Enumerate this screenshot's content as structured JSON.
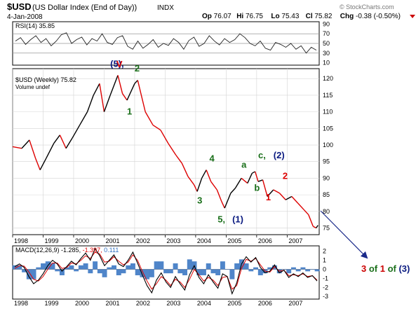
{
  "header": {
    "symbol": "$USD",
    "name": "(US Dollar Index (End of Day))",
    "exchange": "INDX",
    "watermark": "© StockCharts.com",
    "date": "4-Jan-2008",
    "quote": [
      {
        "label": "Op",
        "value": "76.07"
      },
      {
        "label": "Hi",
        "value": "76.75"
      },
      {
        "label": "Lo",
        "value": "75.43"
      },
      {
        "label": "Cl",
        "value": "75.82"
      },
      {
        "label": "Chg",
        "value": "-0.38 (-0.50%)"
      }
    ],
    "down_marker_color": "#cc0000"
  },
  "rsi_panel": {
    "label": "RSI(14) 35.85",
    "ticks": [
      70,
      50,
      30,
      10
    ],
    "extra_ticks": [
      90
    ],
    "overbought": 70,
    "oversold": 30,
    "values": [
      55,
      62,
      48,
      58,
      66,
      52,
      60,
      45,
      55,
      68,
      72,
      50,
      58,
      63,
      47,
      60,
      55,
      70,
      52,
      48,
      62,
      66,
      44,
      38,
      55,
      40,
      48,
      58,
      42,
      50,
      46,
      60,
      52,
      38,
      56,
      63,
      44,
      50,
      66,
      55,
      47,
      60,
      52,
      58,
      70,
      62,
      50,
      45,
      55,
      40,
      36,
      52,
      48,
      42,
      50,
      38,
      45,
      30,
      42,
      36
    ]
  },
  "price_panel": {
    "legend_price": "$USD (Weekly) 75.82",
    "legend_volume": "Volume undef",
    "ticks": [
      120,
      115,
      110,
      105,
      100,
      95,
      90,
      85,
      80,
      75
    ],
    "ylim": [
      73,
      123
    ],
    "line_colors": {
      "up": "#000000",
      "down": "#dd0000"
    }
  },
  "chart_data": {
    "type": "line",
    "title": "$USD (US Dollar Index (End of Day))",
    "x_label": "",
    "y_label": "",
    "x_years": [
      "1998",
      "1999",
      "2000",
      "2001",
      "2002",
      "2003",
      "2004",
      "2005",
      "2006",
      "2007"
    ],
    "xlim": [
      1998.0,
      2008.05
    ],
    "series": [
      {
        "name": "$USD (Weekly)",
        "points": [
          [
            1998.0,
            99.5
          ],
          [
            1998.3,
            99.0
          ],
          [
            1998.55,
            101.5
          ],
          [
            1998.75,
            96.0
          ],
          [
            1998.9,
            92.5
          ],
          [
            1999.1,
            96.0
          ],
          [
            1999.35,
            100.5
          ],
          [
            1999.55,
            103.0
          ],
          [
            1999.75,
            99.0
          ],
          [
            1999.95,
            102.0
          ],
          [
            2000.2,
            106.0
          ],
          [
            2000.45,
            110.0
          ],
          [
            2000.65,
            115.0
          ],
          [
            2000.85,
            118.5
          ],
          [
            2001.0,
            110.0
          ],
          [
            2001.2,
            115.0
          ],
          [
            2001.45,
            121.0
          ],
          [
            2001.6,
            115.5
          ],
          [
            2001.75,
            113.5
          ],
          [
            2002.0,
            118.5
          ],
          [
            2002.1,
            119.5
          ],
          [
            2002.35,
            110.0
          ],
          [
            2002.6,
            106.0
          ],
          [
            2002.85,
            104.5
          ],
          [
            2003.1,
            100.5
          ],
          [
            2003.35,
            97.0
          ],
          [
            2003.55,
            94.5
          ],
          [
            2003.75,
            90.5
          ],
          [
            2003.95,
            88.0
          ],
          [
            2004.05,
            86.0
          ],
          [
            2004.2,
            90.0
          ],
          [
            2004.35,
            92.5
          ],
          [
            2004.5,
            89.0
          ],
          [
            2004.7,
            86.5
          ],
          [
            2004.85,
            83.0
          ],
          [
            2004.95,
            81.0
          ],
          [
            2005.15,
            85.5
          ],
          [
            2005.3,
            87.0
          ],
          [
            2005.5,
            90.0
          ],
          [
            2005.7,
            88.5
          ],
          [
            2005.85,
            91.5
          ],
          [
            2005.95,
            92.0
          ],
          [
            2006.05,
            89.0
          ],
          [
            2006.2,
            89.5
          ],
          [
            2006.35,
            84.5
          ],
          [
            2006.55,
            86.5
          ],
          [
            2006.75,
            85.5
          ],
          [
            2006.95,
            83.5
          ],
          [
            2007.15,
            84.5
          ],
          [
            2007.35,
            82.5
          ],
          [
            2007.55,
            80.5
          ],
          [
            2007.7,
            79.0
          ],
          [
            2007.85,
            75.5
          ],
          [
            2007.95,
            75.0
          ],
          [
            2008.01,
            75.82
          ]
        ]
      }
    ],
    "annotations": [
      {
        "text": "(5),",
        "color": "#0a1a80",
        "at": [
          2001.2,
          123.5
        ]
      },
      {
        "text": "V",
        "color": "#dd0000",
        "at": [
          2001.4,
          123.4
        ]
      },
      {
        "text": "2",
        "color": "#1a6f1a",
        "at": [
          2002.0,
          122.2
        ]
      },
      {
        "text": "1",
        "color": "#1a6f1a",
        "at": [
          2001.75,
          109.2
        ]
      },
      {
        "text": "4",
        "color": "#1a6f1a",
        "at": [
          2004.45,
          95.0
        ]
      },
      {
        "text": "3",
        "color": "#1a6f1a",
        "at": [
          2004.05,
          82.4
        ]
      },
      {
        "text": "a",
        "color": "#1a6f1a",
        "at": [
          2005.5,
          93.2
        ]
      },
      {
        "text": "c,",
        "color": "#1a6f1a",
        "at": [
          2006.05,
          96.0
        ]
      },
      {
        "text": "(2)",
        "color": "#0a1a80",
        "at": [
          2006.55,
          96.0
        ]
      },
      {
        "text": "b",
        "color": "#1a6f1a",
        "at": [
          2005.92,
          86.2
        ]
      },
      {
        "text": "2",
        "color": "#dd0000",
        "at": [
          2006.85,
          89.8
        ]
      },
      {
        "text": "1",
        "color": "#dd0000",
        "at": [
          2006.3,
          83.3
        ]
      },
      {
        "text": "5,",
        "color": "#1a6f1a",
        "at": [
          2004.72,
          76.7
        ]
      },
      {
        "text": "(1)",
        "color": "#0a1a80",
        "at": [
          2005.2,
          76.7
        ]
      }
    ]
  },
  "macd_panel": {
    "label": "MACD(12,26,9)",
    "value": "-1.285,",
    "signal": "-1.397,",
    "histogram": "0.111",
    "value_color": "#000000",
    "signal_color": "#dd0000",
    "histogram_color": "#3070c0",
    "ticks": [
      "2",
      "1",
      "0",
      "-1",
      "-2",
      "-3"
    ],
    "tick_values": [
      2,
      1,
      0,
      -1,
      -2,
      -3
    ],
    "ylim": [
      -3.3,
      2.6
    ],
    "values": [
      0.3,
      0.6,
      0.2,
      -0.8,
      -1.6,
      -1.2,
      -0.5,
      0.4,
      1.0,
      0.6,
      -0.2,
      0.3,
      0.9,
      0.5,
      1.2,
      1.8,
      1.0,
      2.3,
      1.5,
      0.4,
      1.0,
      1.6,
      0.6,
      0.3,
      1.0,
      1.9,
      0.7,
      -0.6,
      -1.8,
      -2.6,
      -1.2,
      -0.4,
      -1.4,
      -2.0,
      -0.8,
      -1.6,
      -2.3,
      -0.6,
      0.4,
      -0.9,
      -1.6,
      -0.6,
      -1.4,
      -2.1,
      -0.5,
      -0.8,
      -2.7,
      -1.5,
      0.6,
      1.4,
      0.8,
      1.3,
      0.2,
      -0.4,
      -0.2,
      0.5,
      -0.4,
      -0.1,
      -0.9,
      -0.5,
      -0.8,
      -0.4,
      -0.9,
      -0.7,
      -1.3
    ],
    "signal_values": [
      0.1,
      0.4,
      0.35,
      -0.3,
      -1.1,
      -1.3,
      -0.8,
      0.0,
      0.7,
      0.7,
      0.1,
      0.2,
      0.7,
      0.6,
      1.0,
      1.5,
      1.2,
      1.9,
      1.7,
      0.8,
      0.9,
      1.4,
      0.9,
      0.5,
      0.8,
      1.6,
      1.0,
      -0.2,
      -1.3,
      -2.2,
      -1.6,
      -0.8,
      -1.2,
      -1.8,
      -1.1,
      -1.4,
      -2.0,
      -1.1,
      0.0,
      -0.6,
      -1.3,
      -0.9,
      -1.2,
      -1.8,
      -0.9,
      -0.8,
      -2.2,
      -1.8,
      0.1,
      1.1,
      0.9,
      1.2,
      0.5,
      -0.2,
      -0.3,
      0.3,
      -0.2,
      -0.1,
      -0.7,
      -0.6,
      -0.7,
      -0.5,
      -0.8,
      -0.7,
      -1.2
    ]
  },
  "side_note": {
    "parts": [
      {
        "text": "3",
        "color": "#cc0000"
      },
      {
        "text": " of ",
        "color": "#1a6f1a"
      },
      {
        "text": "1",
        "color": "#cc0000"
      },
      {
        "text": " of ",
        "color": "#1a6f1a"
      },
      {
        "text": "(3)",
        "color": "#0a1a80"
      }
    ],
    "arrow_color": "#1a2a8a"
  }
}
